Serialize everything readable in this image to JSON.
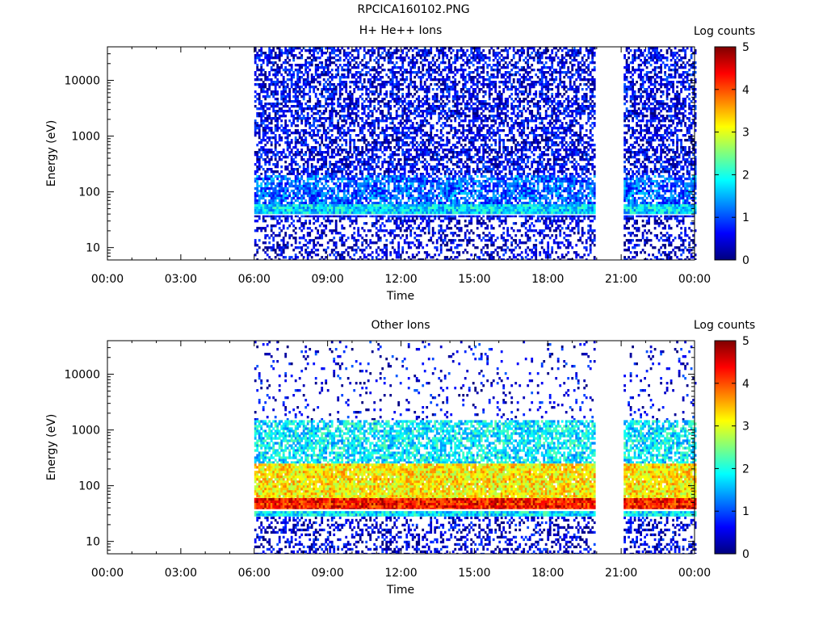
{
  "file_title": "RPCICA160102.PNG",
  "colors": {
    "background": "#ffffff",
    "axis": "#000000",
    "colormap": [
      "#00007f",
      "#0000ff",
      "#007fff",
      "#00ffff",
      "#7fff7f",
      "#ffff00",
      "#ff7f00",
      "#ff0000",
      "#7f0000"
    ]
  },
  "chart_data": [
    {
      "type": "heatmap",
      "title": "H+ He++ Ions",
      "xlabel": "Time",
      "ylabel": "Energy (eV)",
      "yscale": "log",
      "ylim": [
        6,
        40000
      ],
      "xlim_hours": [
        0,
        24
      ],
      "x_ticks": [
        "00:00",
        "03:00",
        "06:00",
        "09:00",
        "12:00",
        "15:00",
        "18:00",
        "21:00",
        "00:00"
      ],
      "y_ticks": [
        {
          "value": 10,
          "label": "10"
        },
        {
          "value": 100,
          "label": "100"
        },
        {
          "value": 1000,
          "label": "1000"
        },
        {
          "value": 10000,
          "label": "10000"
        }
      ],
      "colorbar": {
        "label": "Log counts",
        "min": 0,
        "max": 5,
        "ticks": [
          "0",
          "1",
          "2",
          "3",
          "4",
          "5"
        ]
      },
      "data_intervals_hours": [
        [
          6.0,
          19.9
        ],
        [
          21.1,
          24.0
        ]
      ],
      "bands": [
        {
          "emin": 6,
          "emax": 35,
          "level": 0.4,
          "coverage": 0.35,
          "note": "sparse low-count noise"
        },
        {
          "emin": 35,
          "emax": 38,
          "level": 0.5,
          "coverage": 0.95
        },
        {
          "emin": 40,
          "emax": 60,
          "level": 1.7,
          "coverage": 1.0,
          "note": "main cyan band"
        },
        {
          "emin": 60,
          "emax": 200,
          "level": 1.1,
          "coverage": 0.75
        },
        {
          "emin": 200,
          "emax": 40000,
          "level": 0.5,
          "coverage": 0.55,
          "note": "background noise"
        }
      ]
    },
    {
      "type": "heatmap",
      "title": "Other Ions",
      "xlabel": "Time",
      "ylabel": "Energy (eV)",
      "yscale": "log",
      "ylim": [
        6,
        40000
      ],
      "xlim_hours": [
        0,
        24
      ],
      "x_ticks": [
        "00:00",
        "03:00",
        "06:00",
        "09:00",
        "12:00",
        "15:00",
        "18:00",
        "21:00",
        "00:00"
      ],
      "y_ticks": [
        {
          "value": 10,
          "label": "10"
        },
        {
          "value": 100,
          "label": "100"
        },
        {
          "value": 1000,
          "label": "1000"
        },
        {
          "value": 10000,
          "label": "10000"
        }
      ],
      "colorbar": {
        "label": "Log counts",
        "min": 0,
        "max": 5,
        "ticks": [
          "0",
          "1",
          "2",
          "3",
          "4",
          "5"
        ]
      },
      "data_intervals_hours": [
        [
          6.0,
          19.9
        ],
        [
          21.1,
          24.0
        ]
      ],
      "bands": [
        {
          "emin": 6,
          "emax": 28,
          "level": 0.4,
          "coverage": 0.35,
          "note": "sparse low-count noise"
        },
        {
          "emin": 28,
          "emax": 35,
          "level": 1.8,
          "coverage": 1.0
        },
        {
          "emin": 38,
          "emax": 60,
          "level": 4.3,
          "coverage": 1.0,
          "note": "intense red band"
        },
        {
          "emin": 60,
          "emax": 250,
          "level": 3.2,
          "coverage": 0.95
        },
        {
          "emin": 250,
          "emax": 1500,
          "level": 1.8,
          "coverage": 0.7
        },
        {
          "emin": 1500,
          "emax": 40000,
          "level": 0.5,
          "coverage": 0.08,
          "note": "sparse high-energy dots"
        }
      ]
    }
  ]
}
